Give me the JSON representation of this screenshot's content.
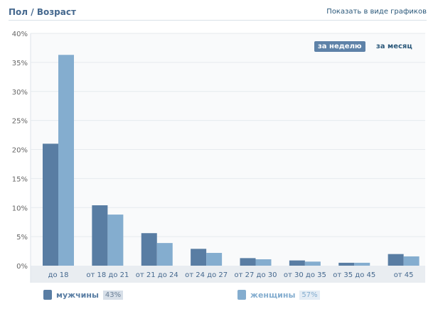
{
  "header": {
    "title": "Пол / Возраст",
    "show_as_graphs": "Показать в виде графиков"
  },
  "period": {
    "week": "за неделю",
    "month": "за месяц"
  },
  "colors": {
    "men": "#597da3",
    "women": "#84adcf"
  },
  "legend": {
    "men": {
      "label": "мужчины",
      "pct": "43%"
    },
    "women": {
      "label": "женщины",
      "pct": "57%"
    }
  },
  "chart_data": {
    "type": "bar",
    "title": "Пол / Возраст",
    "categories": [
      "до 18",
      "от 18 до 21",
      "от 21 до 24",
      "от 24 до 27",
      "от 27 до 30",
      "от 30 до 35",
      "от 35 до 45",
      "от 45"
    ],
    "series": [
      {
        "name": "мужчины",
        "values": [
          21.0,
          10.4,
          5.6,
          2.9,
          1.3,
          0.9,
          0.5,
          2.0
        ]
      },
      {
        "name": "женщины",
        "values": [
          36.3,
          8.8,
          3.9,
          2.2,
          1.1,
          0.7,
          0.5,
          1.6
        ]
      }
    ],
    "yticks": [
      "0%",
      "5%",
      "10%",
      "15%",
      "20%",
      "25%",
      "30%",
      "35%",
      "40%"
    ],
    "ylim": [
      0,
      40
    ],
    "grid": true,
    "legend_position": "bottom"
  }
}
